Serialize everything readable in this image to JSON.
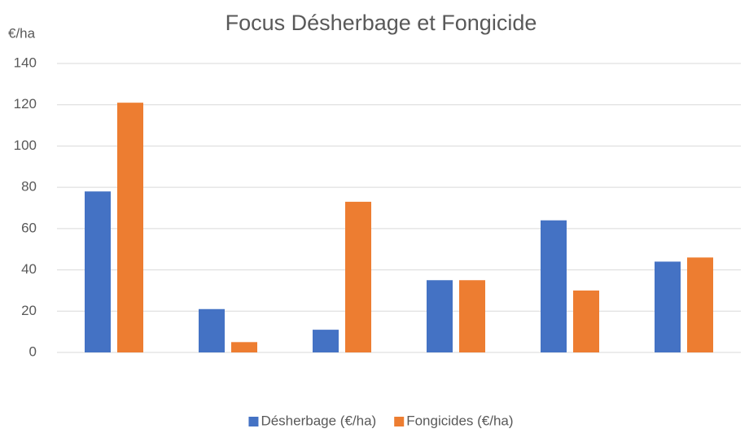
{
  "chart_data": {
    "type": "bar",
    "title": "Focus Désherbage et Fongicide",
    "y_label": "€/ha",
    "categories": [
      null,
      null,
      null,
      null,
      null,
      null
    ],
    "series": [
      {
        "name": "Désherbage (€/ha)",
        "color": "#4472c4",
        "values": [
          78,
          21,
          11,
          35,
          64,
          44
        ]
      },
      {
        "name": "Fongicides (€/ha)",
        "color": "#ed7d31",
        "values": [
          121,
          5,
          73,
          35,
          30,
          46
        ]
      }
    ],
    "ylim": [
      0,
      140
    ],
    "yticks": [
      0,
      20,
      40,
      60,
      80,
      100,
      120,
      140
    ],
    "grid": true,
    "legend": "bottom"
  }
}
